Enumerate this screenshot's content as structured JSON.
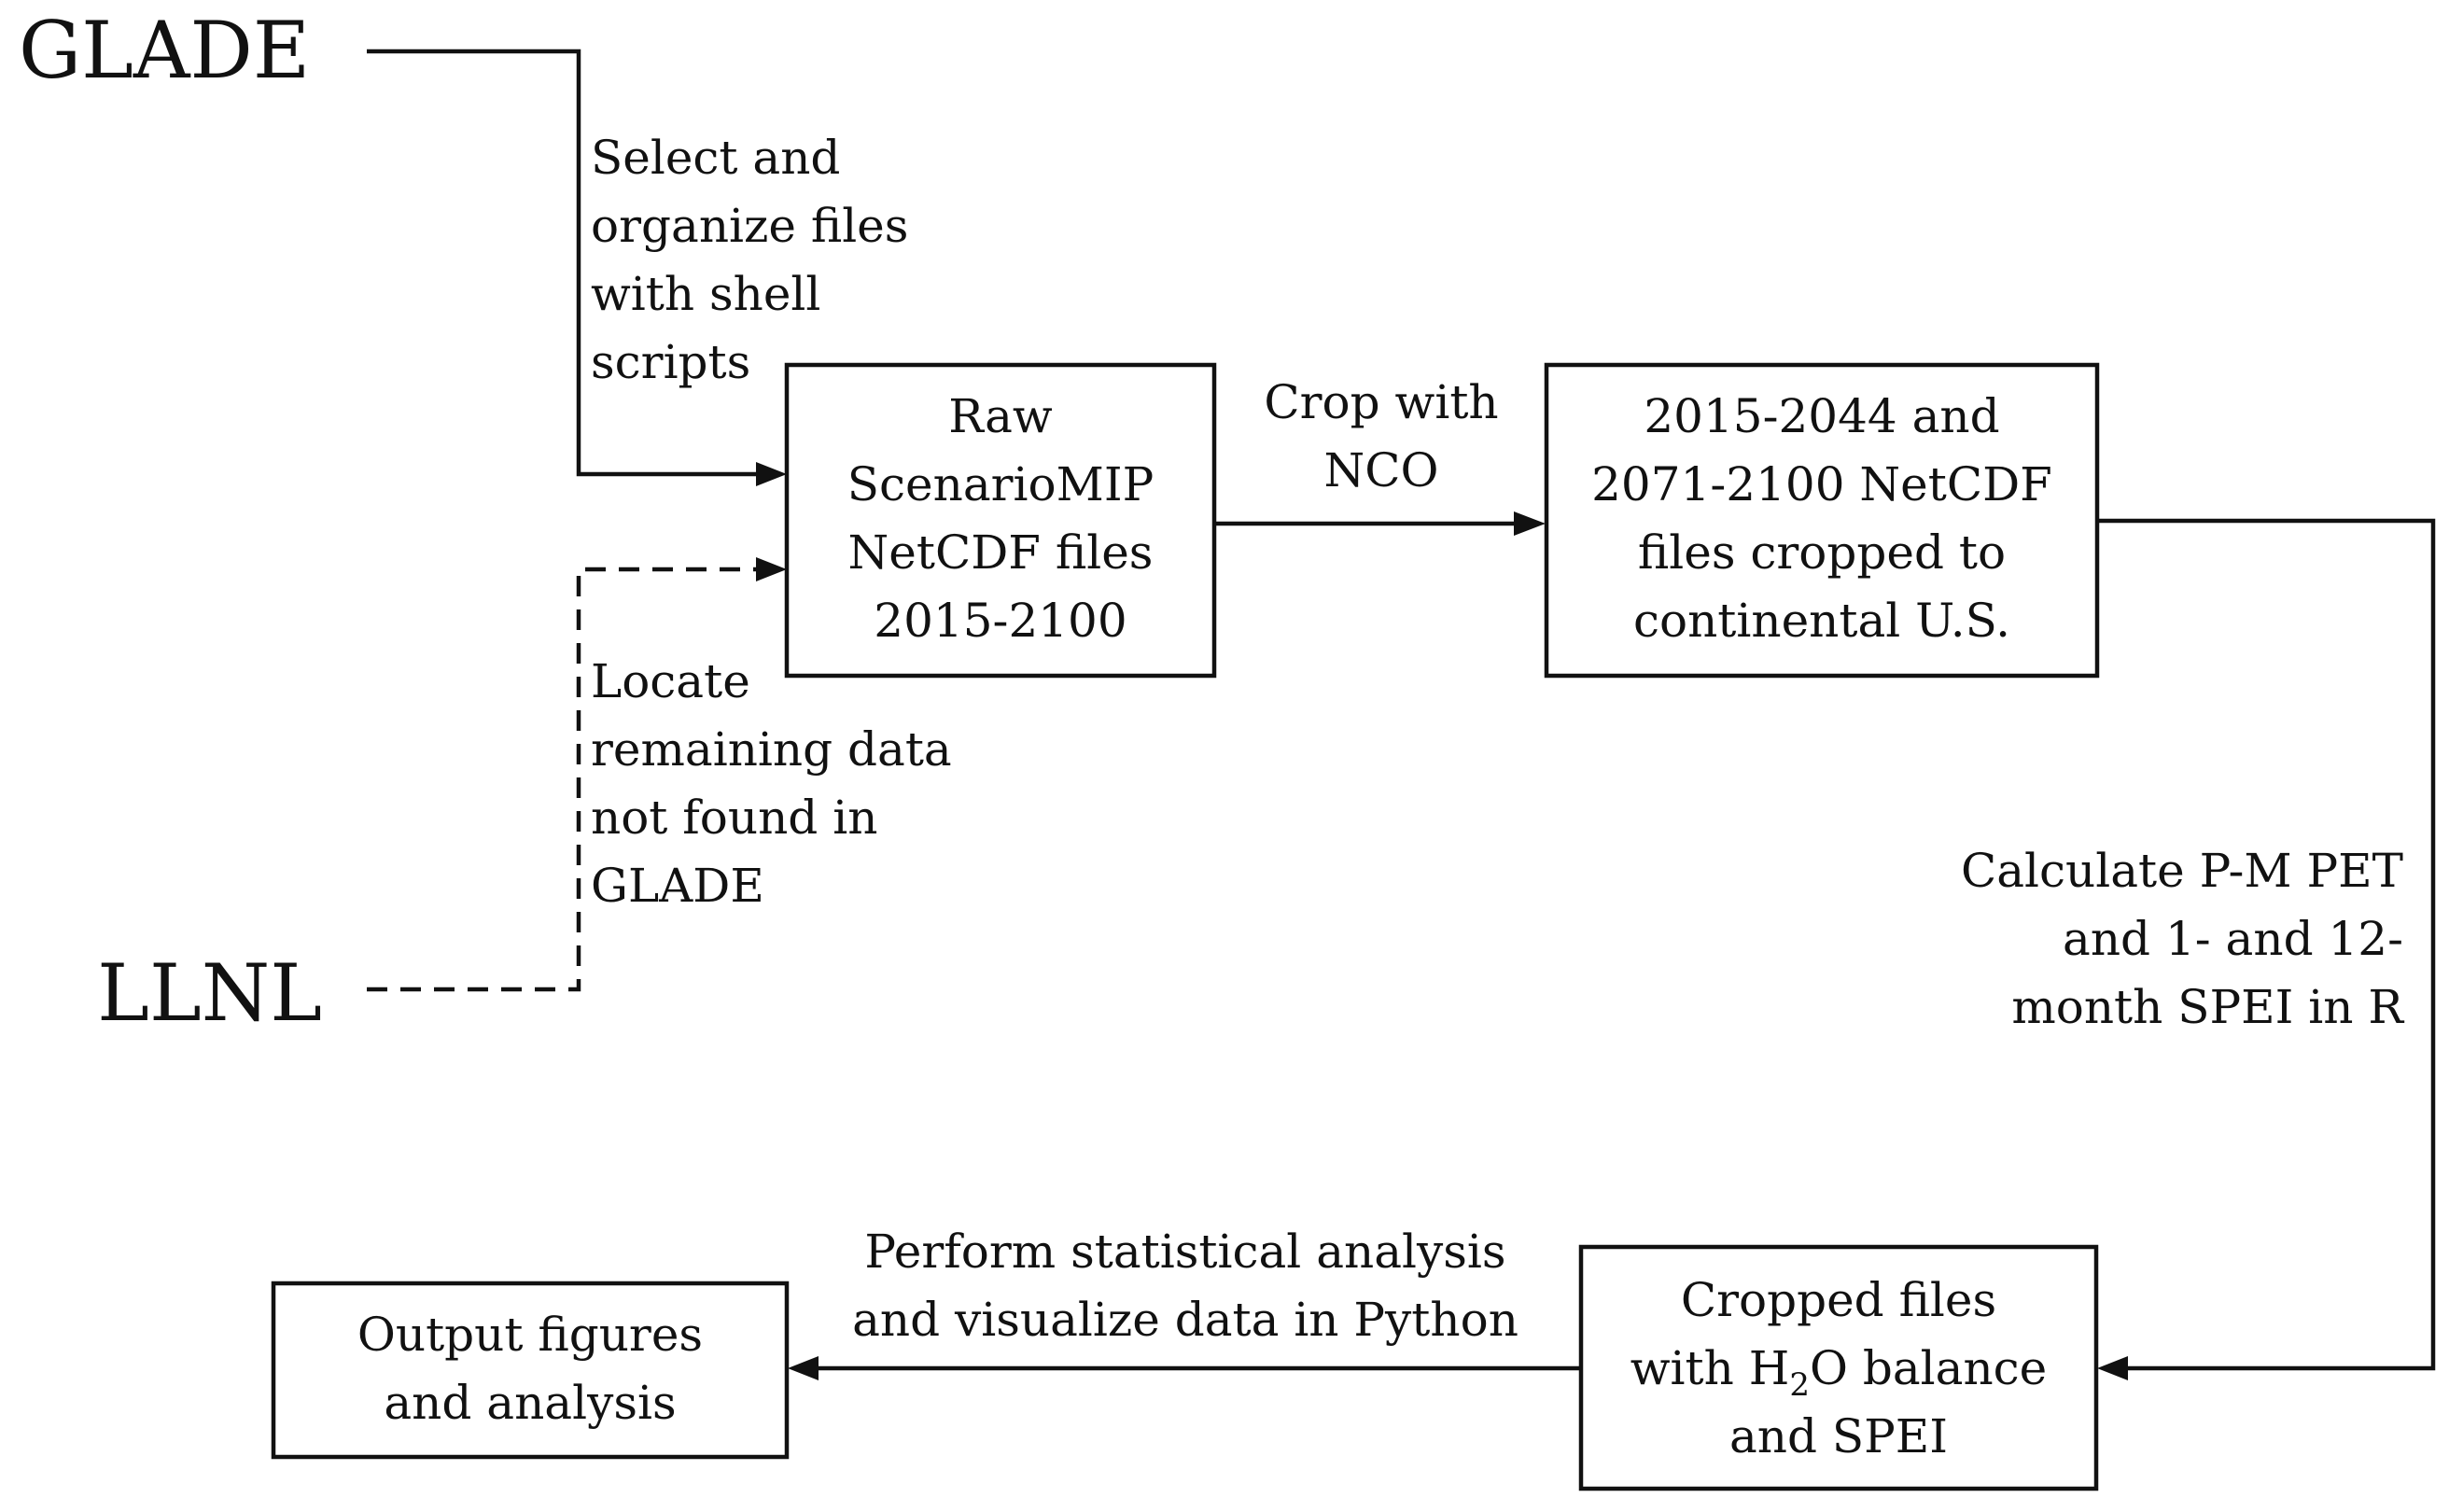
{
  "sources": {
    "glade": "GLADE",
    "llnl": "LLNL"
  },
  "boxes": {
    "raw": [
      "Raw",
      "ScenarioMIP",
      "NetCDF files",
      "2015-2100"
    ],
    "cropped": [
      "2015-2044 and",
      "2071-2100 NetCDF",
      "files cropped to",
      "continental U.S."
    ],
    "balance": {
      "line1": "Cropped files",
      "line2_pre": "with H",
      "line2_sub": "2",
      "line2_post": "O balance",
      "line3": "and SPEI"
    },
    "output": [
      "Output figures",
      "and analysis"
    ]
  },
  "edge_labels": {
    "select": [
      "Select and",
      "organize files",
      "with shell",
      "scripts"
    ],
    "locate": [
      "Locate",
      "remaining data",
      "not found in",
      "GLADE"
    ],
    "crop": [
      "Crop with",
      "NCO"
    ],
    "calculate": [
      "Calculate P-M PET",
      "and 1- and 12-",
      "month SPEI in R"
    ],
    "perform": [
      "Perform statistical analysis",
      "and visualize data in Python"
    ]
  },
  "styles": {
    "stroke_color": "#111111",
    "background": "#ffffff",
    "llnl_edge": "dashed"
  }
}
